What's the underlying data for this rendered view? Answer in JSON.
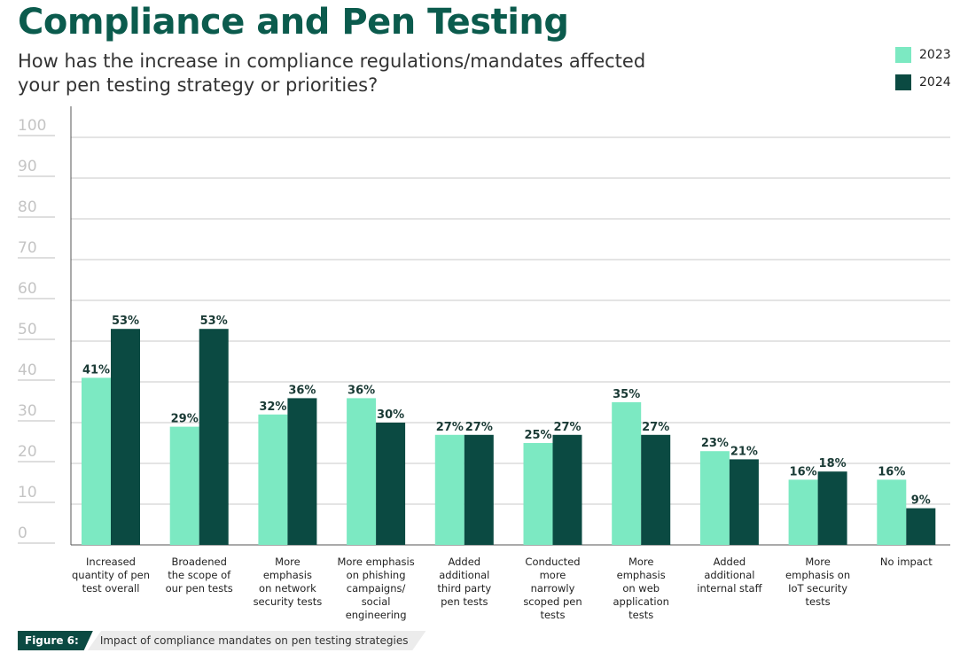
{
  "header": {
    "title": "Compliance and Pen Testing",
    "subtitle": "How has the increase in compliance regulations/mandates affected your pen testing strategy or priorities?"
  },
  "legend": [
    {
      "label": "2023",
      "color": "#7ce9c2"
    },
    {
      "label": "2024",
      "color": "#0b4a42"
    }
  ],
  "chart_data": {
    "type": "bar",
    "categories": [
      [
        "Increased",
        "quantity of pen",
        "test overall"
      ],
      [
        "Broadened",
        "the scope of",
        "our pen tests"
      ],
      [
        "More",
        "emphasis",
        "on network",
        "security tests"
      ],
      [
        "More emphasis",
        "on phishing",
        "campaigns/",
        "social",
        "engineering"
      ],
      [
        "Added",
        "additional",
        "third party",
        "pen tests"
      ],
      [
        "Conducted",
        "more",
        "narrowly",
        "scoped pen",
        "tests"
      ],
      [
        "More",
        "emphasis",
        "on web",
        "application",
        "tests"
      ],
      [
        "Added",
        "additional",
        "internal staff"
      ],
      [
        "More",
        "emphasis on",
        "IoT security",
        "tests"
      ],
      [
        "No impact"
      ]
    ],
    "series": [
      {
        "name": "2023",
        "color": "#7ce9c2",
        "values": [
          41,
          29,
          32,
          36,
          27,
          25,
          35,
          23,
          16,
          16
        ],
        "labels": [
          "41%",
          "29%",
          "32%",
          "36%",
          "27%",
          "25%",
          "35%",
          "23%",
          "16%",
          "16%"
        ]
      },
      {
        "name": "2024",
        "color": "#0b4a42",
        "values": [
          53,
          53,
          36,
          30,
          27,
          27,
          27,
          21,
          18,
          9
        ],
        "labels": [
          "53%",
          "53%",
          "36%",
          "30%",
          "27%",
          "27%",
          "27%",
          "21%",
          "18%",
          "9%"
        ]
      }
    ],
    "y_ticks": [
      "0",
      "10",
      "20",
      "30",
      "40",
      "50",
      "60",
      "70",
      "80",
      "90",
      "100"
    ],
    "ylim": [
      0,
      100
    ],
    "grid": true,
    "legend_position": "top-right"
  },
  "caption": {
    "tag": "Figure 6:",
    "text": "Impact of compliance mandates on pen testing strategies"
  }
}
